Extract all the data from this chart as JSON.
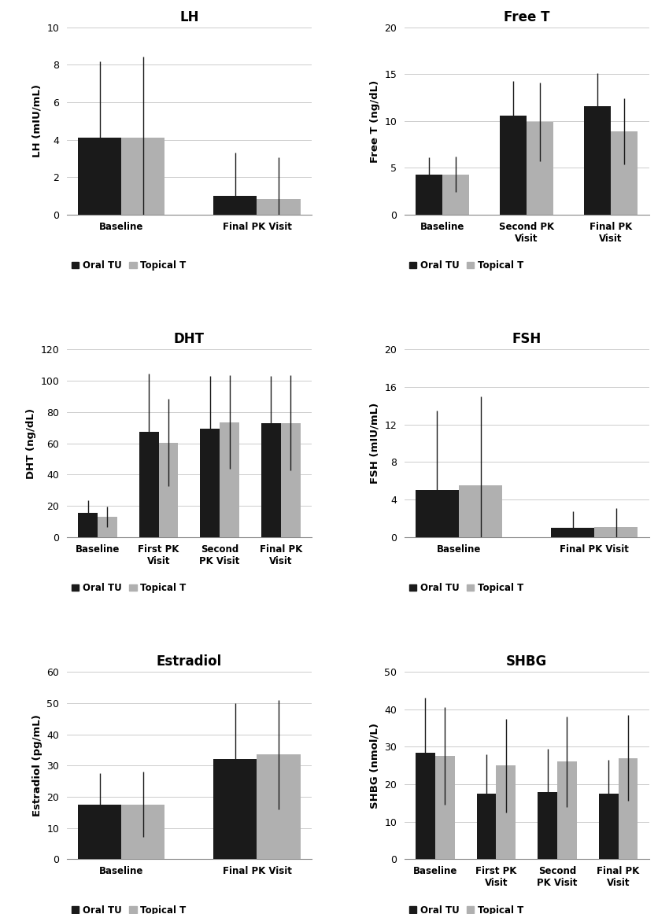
{
  "panels": [
    {
      "title": "LH",
      "ylabel": "LH (mIU/mL)",
      "ylim": [
        0,
        10
      ],
      "yticks": [
        0,
        2,
        4,
        6,
        8,
        10
      ],
      "categories": [
        "Baseline",
        "Final PK Visit"
      ],
      "oral_tu": [
        4.1,
        1.0
      ],
      "topical_t": [
        4.1,
        0.85
      ],
      "oral_tu_err": [
        4.1,
        2.3
      ],
      "topical_t_err": [
        4.35,
        2.2
      ],
      "row": 0,
      "col": 0
    },
    {
      "title": "Free T",
      "ylabel": "Free T (ng/dL)",
      "ylim": [
        0,
        20
      ],
      "yticks": [
        0,
        5,
        10,
        15,
        20
      ],
      "categories": [
        "Baseline",
        "Second PK\nVisit",
        "Final PK\nVisit"
      ],
      "oral_tu": [
        4.3,
        10.6,
        11.6
      ],
      "topical_t": [
        4.3,
        9.9,
        8.9
      ],
      "oral_tu_err": [
        1.8,
        3.7,
        3.5
      ],
      "topical_t_err": [
        1.9,
        4.2,
        3.5
      ],
      "row": 0,
      "col": 1
    },
    {
      "title": "DHT",
      "ylabel": "DHT (ng/dL)",
      "ylim": [
        0,
        120
      ],
      "yticks": [
        0,
        20,
        40,
        60,
        80,
        100,
        120
      ],
      "categories": [
        "Baseline",
        "First PK\nVisit",
        "Second\nPK Visit",
        "Final PK\nVisit"
      ],
      "oral_tu": [
        15.5,
        67.5,
        69.5,
        73.0
      ],
      "topical_t": [
        13.0,
        60.5,
        73.5,
        73.0
      ],
      "oral_tu_err": [
        8.0,
        37.0,
        33.5,
        30.0
      ],
      "topical_t_err": [
        6.5,
        28.0,
        30.0,
        30.5
      ],
      "row": 1,
      "col": 0
    },
    {
      "title": "FSH",
      "ylabel": "FSH (mIU/mL)",
      "ylim": [
        0,
        20
      ],
      "yticks": [
        0,
        4,
        8,
        12,
        16,
        20
      ],
      "categories": [
        "Baseline",
        "Final PK Visit"
      ],
      "oral_tu": [
        5.0,
        1.0
      ],
      "topical_t": [
        5.5,
        1.1
      ],
      "oral_tu_err": [
        8.5,
        1.7
      ],
      "topical_t_err": [
        9.5,
        2.0
      ],
      "row": 1,
      "col": 1
    },
    {
      "title": "Estradiol",
      "ylabel": "Estradiol (pg/mL)",
      "ylim": [
        0,
        60
      ],
      "yticks": [
        0,
        10,
        20,
        30,
        40,
        50,
        60
      ],
      "categories": [
        "Baseline",
        "Final PK Visit"
      ],
      "oral_tu": [
        17.5,
        32.0
      ],
      "topical_t": [
        17.5,
        33.5
      ],
      "oral_tu_err": [
        10.0,
        18.0
      ],
      "topical_t_err": [
        10.5,
        17.5
      ],
      "row": 2,
      "col": 0
    },
    {
      "title": "SHBG",
      "ylabel": "SHBG (nmol/L)",
      "ylim": [
        0,
        50
      ],
      "yticks": [
        0,
        10,
        20,
        30,
        40,
        50
      ],
      "categories": [
        "Baseline",
        "First PK\nVisit",
        "Second\nPK Visit",
        "Final PK\nVisit"
      ],
      "oral_tu": [
        28.5,
        17.5,
        18.0,
        17.5
      ],
      "topical_t": [
        27.5,
        25.0,
        26.0,
        27.0
      ],
      "oral_tu_err": [
        14.5,
        10.5,
        11.5,
        9.0
      ],
      "topical_t_err": [
        13.0,
        12.5,
        12.0,
        11.5
      ],
      "row": 2,
      "col": 1
    }
  ],
  "black_color": "#1a1a1a",
  "gray_color": "#b0b0b0",
  "bar_width": 0.32,
  "legend_labels": [
    "Oral TU",
    "Topical T"
  ],
  "background_color": "#ffffff"
}
